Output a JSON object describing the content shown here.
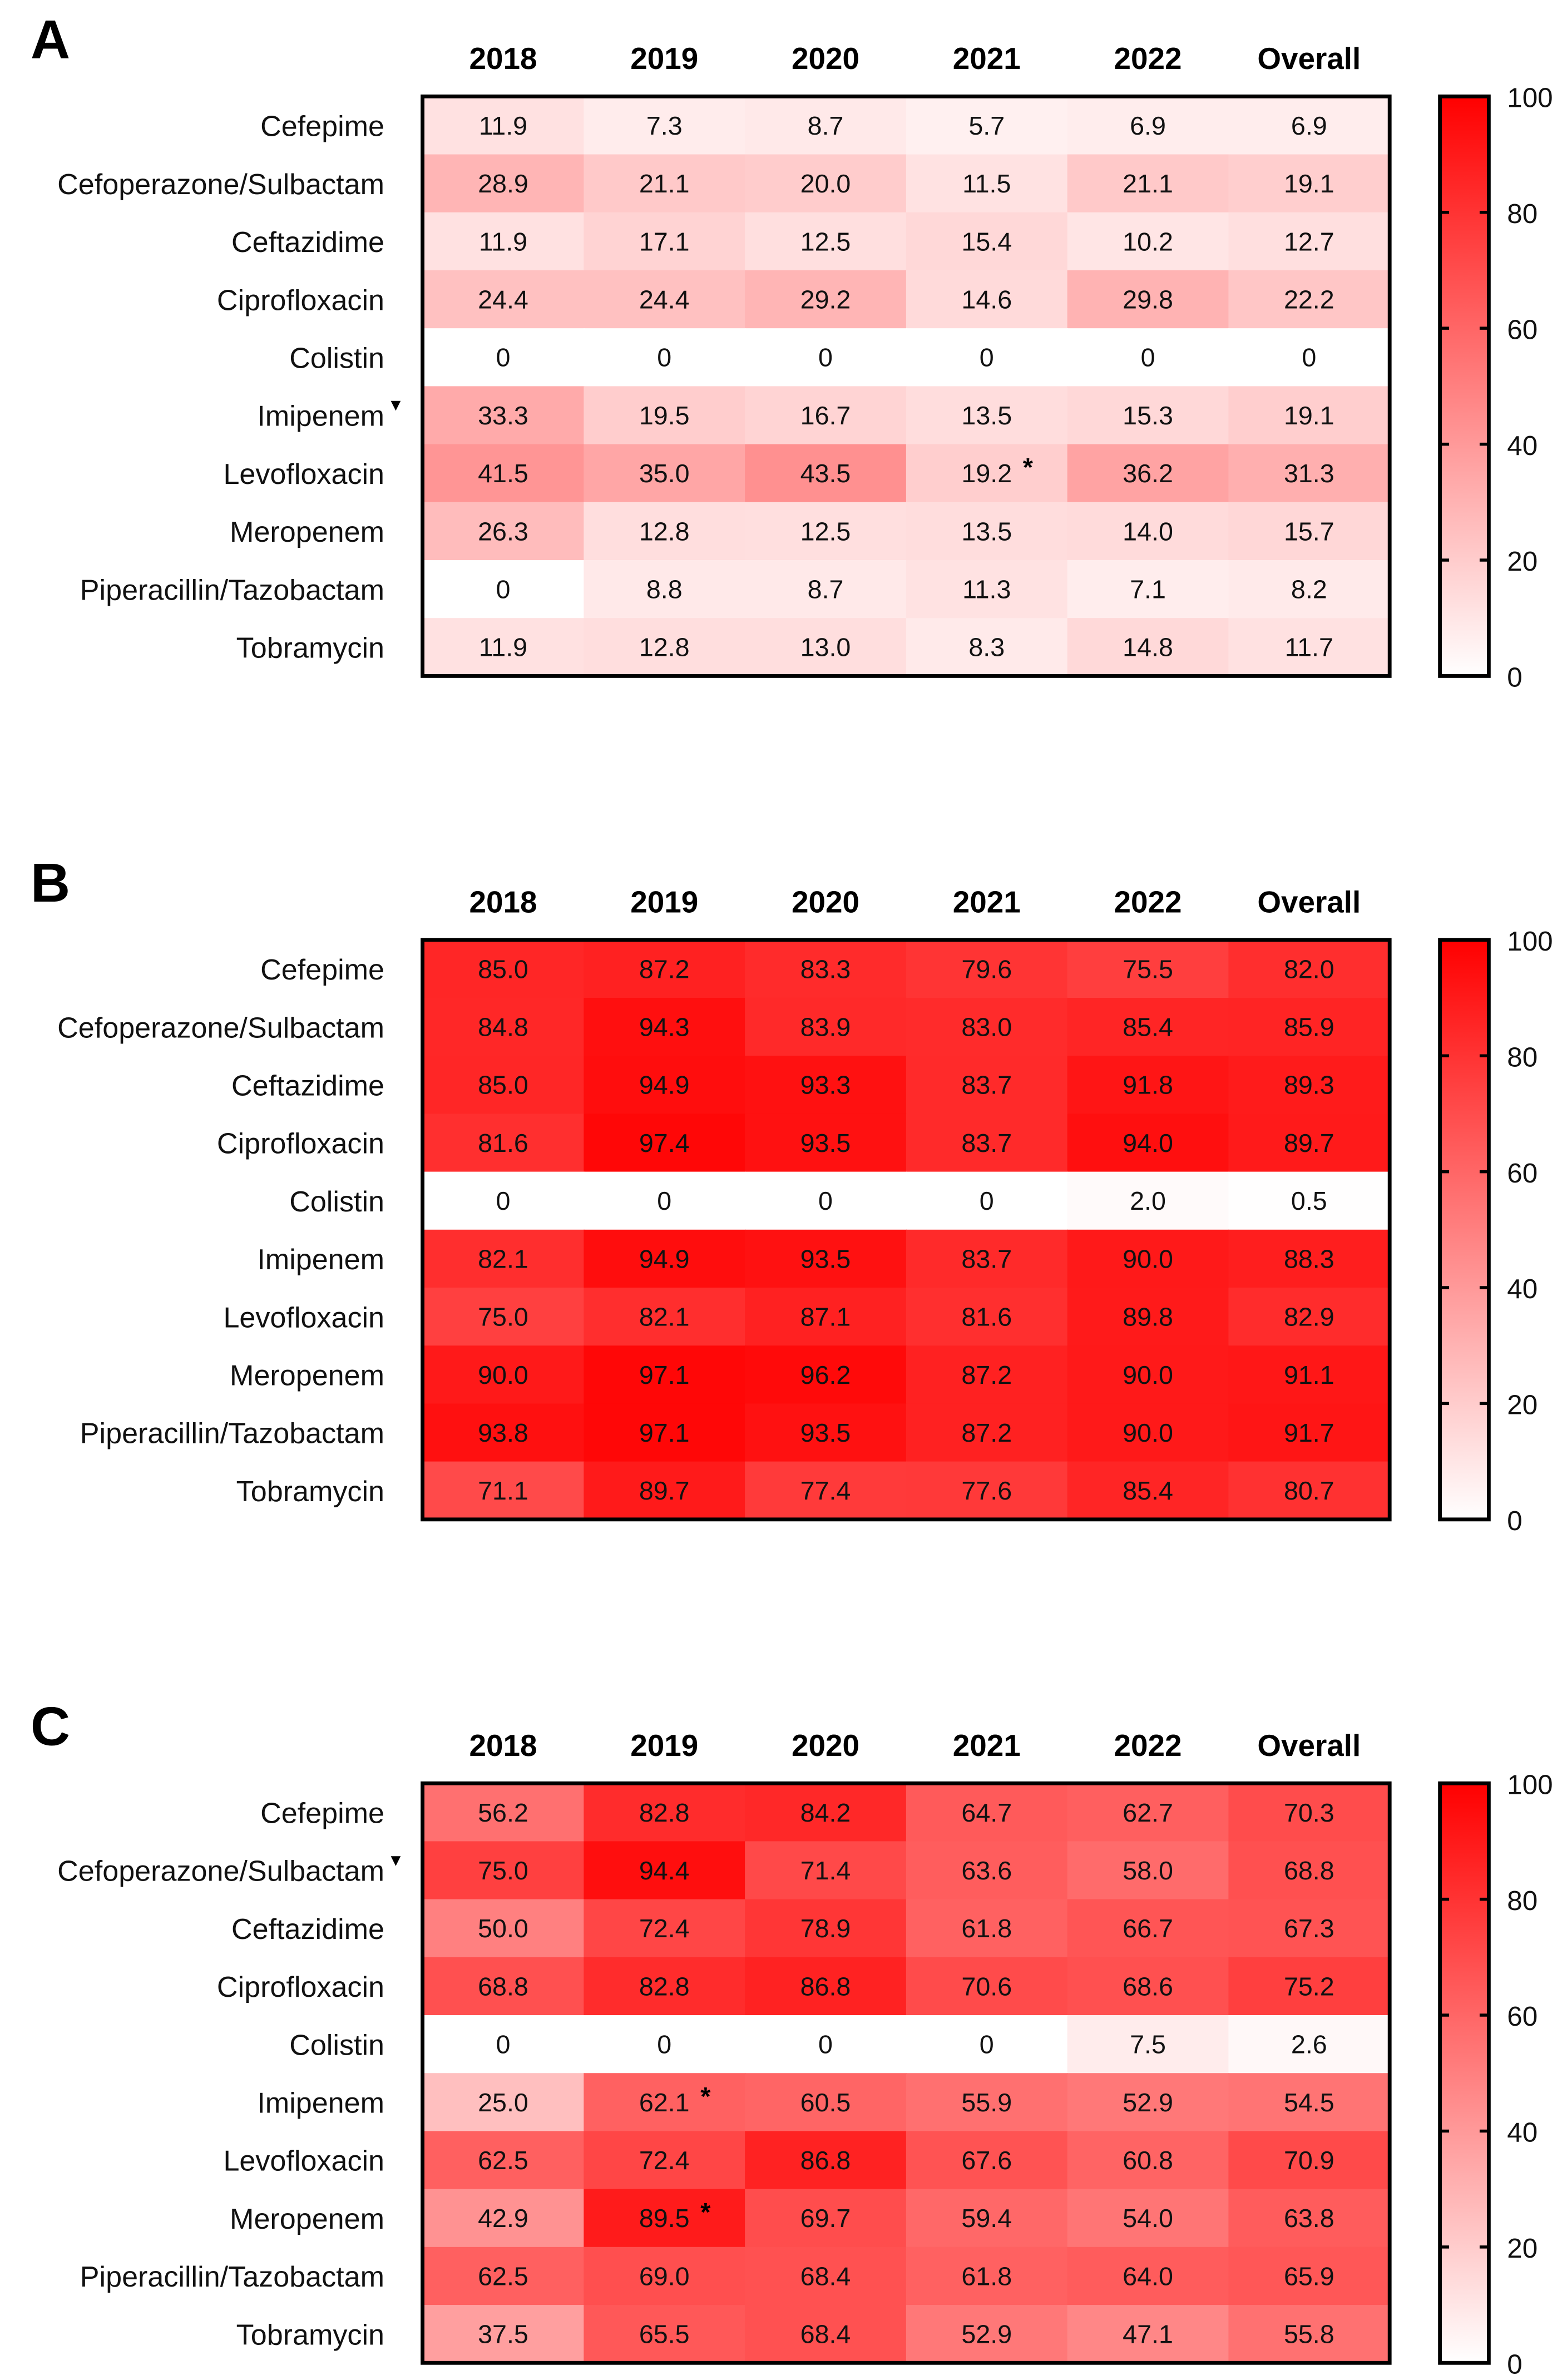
{
  "chart_data": [
    {
      "type": "heatmap",
      "panel_label": "A",
      "columns": [
        "2018",
        "2019",
        "2020",
        "2021",
        "2022",
        "Overall"
      ],
      "rows": [
        "Cefepime",
        "Cefoperazone/Sulbactam",
        "Ceftazidime",
        "Ciprofloxacin",
        "Colistin",
        "Imipenem",
        "Levofloxacin",
        "Meropenem",
        "Piperacillin/Tazobactam",
        "Tobramycin"
      ],
      "values": [
        [
          "11.9",
          "7.3",
          "8.7",
          "5.7",
          "6.9",
          "6.9"
        ],
        [
          "28.9",
          "21.1",
          "20.0",
          "11.5",
          "21.1",
          "19.1"
        ],
        [
          "11.9",
          "17.1",
          "12.5",
          "15.4",
          "10.2",
          "12.7"
        ],
        [
          "24.4",
          "24.4",
          "29.2",
          "14.6",
          "29.8",
          "22.2"
        ],
        [
          "0",
          "0",
          "0",
          "0",
          "0",
          "0"
        ],
        [
          "33.3",
          "19.5",
          "16.7",
          "13.5",
          "15.3",
          "19.1"
        ],
        [
          "41.5",
          "35.0",
          "43.5",
          "19.2",
          "36.2",
          "31.3"
        ],
        [
          "26.3",
          "12.8",
          "12.5",
          "13.5",
          "14.0",
          "15.7"
        ],
        [
          "0",
          "8.8",
          "8.7",
          "11.3",
          "7.1",
          "8.2"
        ],
        [
          "11.9",
          "12.8",
          "13.0",
          "8.3",
          "14.8",
          "11.7"
        ]
      ],
      "row_markers": {
        "Imipenem": "▼"
      },
      "cell_markers": [
        {
          "row": "Levofloxacin",
          "column": "2021",
          "mark": "*"
        }
      ],
      "colorbar": {
        "range": [
          0,
          100
        ],
        "ticks": [
          "0",
          "20",
          "40",
          "60",
          "80",
          "100"
        ],
        "low_color": "#ffffff",
        "high_color": "#ff0000"
      }
    },
    {
      "type": "heatmap",
      "panel_label": "B",
      "columns": [
        "2018",
        "2019",
        "2020",
        "2021",
        "2022",
        "Overall"
      ],
      "rows": [
        "Cefepime",
        "Cefoperazone/Sulbactam",
        "Ceftazidime",
        "Ciprofloxacin",
        "Colistin",
        "Imipenem",
        "Levofloxacin",
        "Meropenem",
        "Piperacillin/Tazobactam",
        "Tobramycin"
      ],
      "values": [
        [
          "85.0",
          "87.2",
          "83.3",
          "79.6",
          "75.5",
          "82.0"
        ],
        [
          "84.8",
          "94.3",
          "83.9",
          "83.0",
          "85.4",
          "85.9"
        ],
        [
          "85.0",
          "94.9",
          "93.3",
          "83.7",
          "91.8",
          "89.3"
        ],
        [
          "81.6",
          "97.4",
          "93.5",
          "83.7",
          "94.0",
          "89.7"
        ],
        [
          "0",
          "0",
          "0",
          "0",
          "2.0",
          "0.5"
        ],
        [
          "82.1",
          "94.9",
          "93.5",
          "83.7",
          "90.0",
          "88.3"
        ],
        [
          "75.0",
          "82.1",
          "87.1",
          "81.6",
          "89.8",
          "82.9"
        ],
        [
          "90.0",
          "97.1",
          "96.2",
          "87.2",
          "90.0",
          "91.1"
        ],
        [
          "93.8",
          "97.1",
          "93.5",
          "87.2",
          "90.0",
          "91.7"
        ],
        [
          "71.1",
          "89.7",
          "77.4",
          "77.6",
          "85.4",
          "80.7"
        ]
      ],
      "row_markers": {},
      "cell_markers": [],
      "colorbar": {
        "range": [
          0,
          100
        ],
        "ticks": [
          "0",
          "20",
          "40",
          "60",
          "80",
          "100"
        ],
        "low_color": "#ffffff",
        "high_color": "#ff0000"
      }
    },
    {
      "type": "heatmap",
      "panel_label": "C",
      "columns": [
        "2018",
        "2019",
        "2020",
        "2021",
        "2022",
        "Overall"
      ],
      "rows": [
        "Cefepime",
        "Cefoperazone/Sulbactam",
        "Ceftazidime",
        "Ciprofloxacin",
        "Colistin",
        "Imipenem",
        "Levofloxacin",
        "Meropenem",
        "Piperacillin/Tazobactam",
        "Tobramycin"
      ],
      "values": [
        [
          "56.2",
          "82.8",
          "84.2",
          "64.7",
          "62.7",
          "70.3"
        ],
        [
          "75.0",
          "94.4",
          "71.4",
          "63.6",
          "58.0",
          "68.8"
        ],
        [
          "50.0",
          "72.4",
          "78.9",
          "61.8",
          "66.7",
          "67.3"
        ],
        [
          "68.8",
          "82.8",
          "86.8",
          "70.6",
          "68.6",
          "75.2"
        ],
        [
          "0",
          "0",
          "0",
          "0",
          "7.5",
          "2.6"
        ],
        [
          "25.0",
          "62.1",
          "60.5",
          "55.9",
          "52.9",
          "54.5"
        ],
        [
          "62.5",
          "72.4",
          "86.8",
          "67.6",
          "60.8",
          "70.9"
        ],
        [
          "42.9",
          "89.5",
          "69.7",
          "59.4",
          "54.0",
          "63.8"
        ],
        [
          "62.5",
          "69.0",
          "68.4",
          "61.8",
          "64.0",
          "65.9"
        ],
        [
          "37.5",
          "65.5",
          "68.4",
          "52.9",
          "47.1",
          "55.8"
        ]
      ],
      "row_markers": {
        "Cefoperazone/Sulbactam": "▼"
      },
      "cell_markers": [
        {
          "row": "Imipenem",
          "column": "2019",
          "mark": "*"
        },
        {
          "row": "Meropenem",
          "column": "2019",
          "mark": "*"
        }
      ],
      "colorbar": {
        "range": [
          0,
          100
        ],
        "ticks": [
          "0",
          "20",
          "40",
          "60",
          "80",
          "100"
        ],
        "low_color": "#ffffff",
        "high_color": "#ff0000"
      }
    }
  ]
}
